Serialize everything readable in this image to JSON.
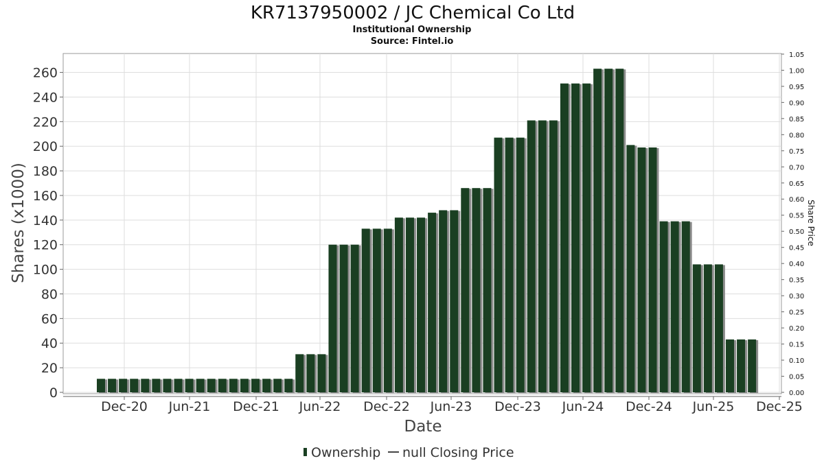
{
  "chart_data": {
    "type": "bar",
    "title": "KR7137950002 / JC Chemical Co Ltd",
    "subtitle_lines": [
      "Institutional Ownership",
      "Source: Fintel.io"
    ],
    "xlabel": "Date",
    "ylabel": "Shares (x1000)",
    "y2label": "Share Price",
    "ylim": [
      0,
      270
    ],
    "y_ticks": [
      0,
      20,
      40,
      60,
      80,
      100,
      120,
      140,
      160,
      180,
      200,
      220,
      240,
      260
    ],
    "y2lim": [
      0,
      1.05
    ],
    "y2_ticks": [
      "0.00",
      "0.05",
      "0.10",
      "0.15",
      "0.20",
      "0.25",
      "0.30",
      "0.35",
      "0.40",
      "0.45",
      "0.50",
      "0.55",
      "0.60",
      "0.65",
      "0.70",
      "0.75",
      "0.80",
      "0.85",
      "0.90",
      "0.95",
      "1.00",
      "1.05"
    ],
    "x_ticks": [
      "Dec-20",
      "Jun-21",
      "Dec-21",
      "Jun-22",
      "Dec-22",
      "Jun-23",
      "Dec-23",
      "Jun-24",
      "Dec-24",
      "Jun-25",
      "Dec-25"
    ],
    "grid": true,
    "legend_position": "bottom",
    "legend": [
      {
        "label": "Ownership",
        "marker": "bar"
      },
      {
        "label": "null Closing Price",
        "marker": "line"
      }
    ],
    "series": [
      {
        "name": "Ownership",
        "color": "#1a3f22",
        "values": [
          11,
          11,
          11,
          11,
          11,
          11,
          11,
          11,
          11,
          11,
          11,
          11,
          11,
          11,
          11,
          11,
          11,
          11,
          31,
          31,
          31,
          120,
          120,
          120,
          133,
          133,
          133,
          142,
          142,
          142,
          146,
          148,
          148,
          166,
          166,
          166,
          207,
          207,
          207,
          221,
          221,
          221,
          251,
          251,
          251,
          263,
          263,
          263,
          201,
          199,
          199,
          139,
          139,
          139,
          104,
          104,
          104,
          43,
          43,
          43
        ]
      }
    ]
  },
  "colors": {
    "bar": "#1a3f22",
    "bar_shadow": "#8c8c8c",
    "grid": "#dddddd",
    "frame": "#999999"
  }
}
